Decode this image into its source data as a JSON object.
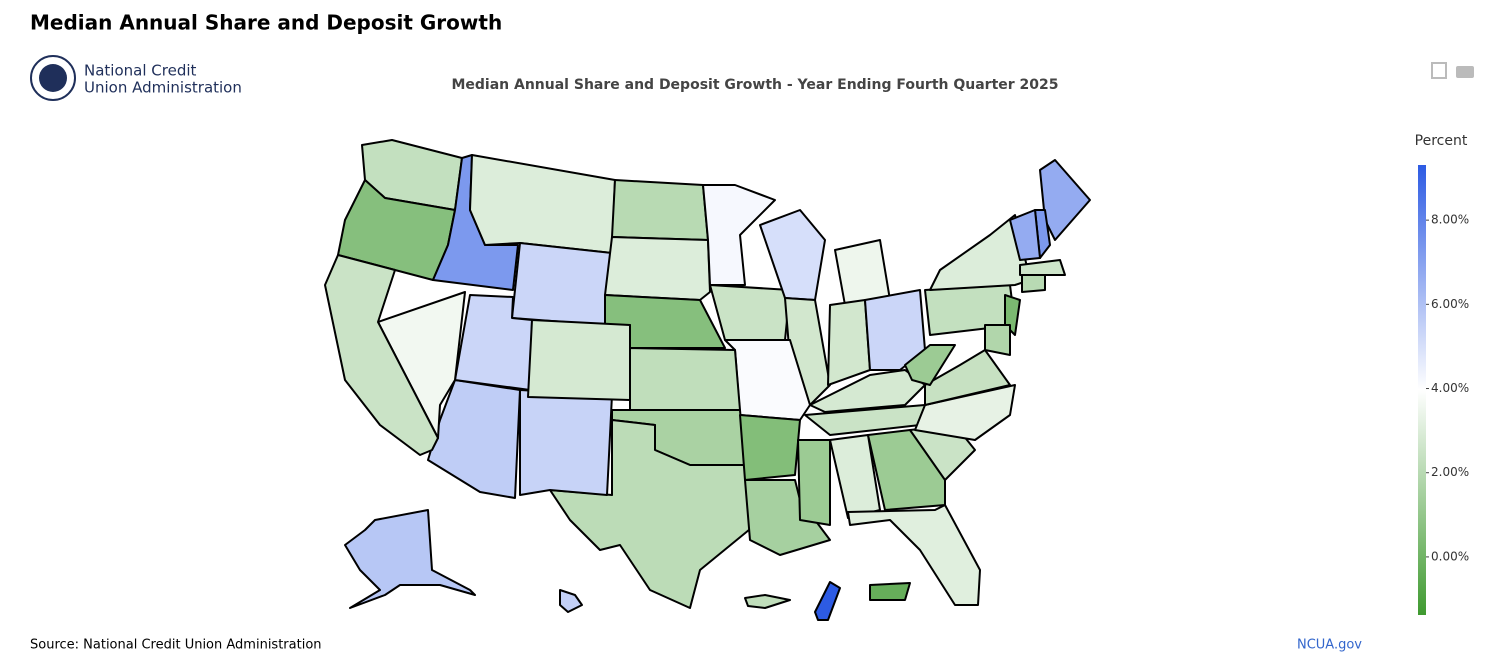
{
  "header": {
    "title": "Median Annual Share and Deposit Growth",
    "logo_line1": "National Credit",
    "logo_line2": "Union Administration"
  },
  "chart_data": {
    "type": "choropleth",
    "title": "Median Annual Share and Deposit Growth - Year Ending Fourth Quarter 2025",
    "colorbar_title": "Percent",
    "values": [
      2.3,
      0.6,
      7.3,
      3.0,
      5.3,
      2.0,
      3.0,
      0.6,
      4.2,
      2.5,
      5.0,
      3.5,
      2.7,
      2.7,
      5.3,
      2.8,
      2.5,
      4.1,
      2.2,
      1.6,
      2.1,
      5.4,
      5.6,
      5.3,
      2.8,
      3.6,
      2.5,
      0.5,
      1.5,
      1.2,
      3.0,
      1.2,
      3.1,
      2.5,
      3.3,
      2.4,
      1.2,
      2.3,
      3.0,
      6.7,
      7.3,
      6.7,
      2.6,
      2.0,
      0.3,
      1.8,
      5.8,
      5.5,
      -0.3,
      2.2,
      9.3
    ],
    "zlim": [
      -1.38,
      9.31
    ],
    "zticks": [
      {
        "value": 0,
        "label": "0.00%"
      },
      {
        "value": 2,
        "label": "2.00%"
      },
      {
        "value": 4,
        "label": "4.00%"
      },
      {
        "value": 6,
        "label": "6.00%"
      },
      {
        "value": 8,
        "label": "8.00%"
      }
    ],
    "colorscale": [
      [
        0,
        "#3f9a30"
      ],
      [
        0.5,
        "#ffffff"
      ],
      [
        1,
        "#2d5be3"
      ]
    ]
  },
  "footer": {
    "source": "Source: National Credit Union Administration",
    "link": "NCUA.gov"
  }
}
